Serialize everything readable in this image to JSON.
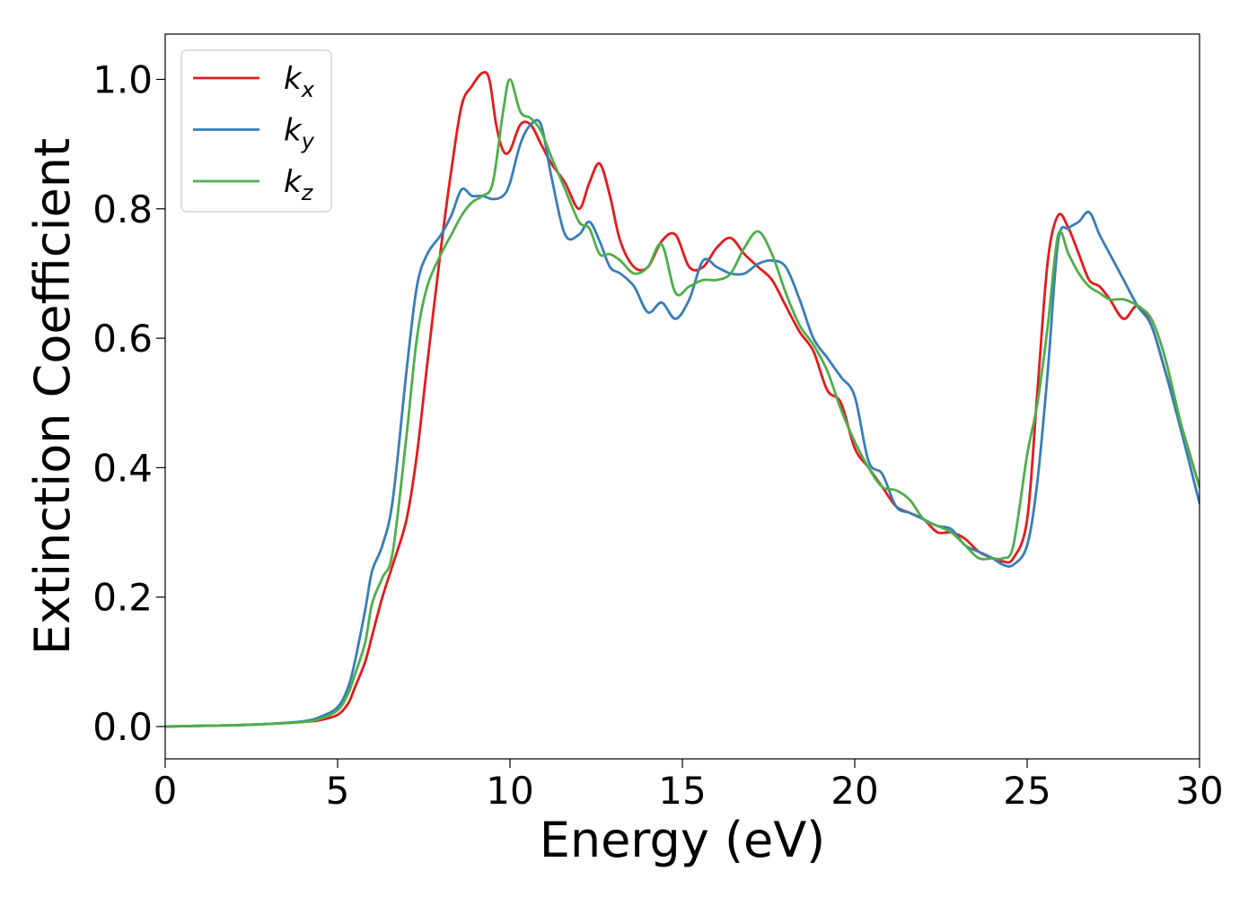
{
  "chart_data": {
    "type": "line",
    "xlabel": "Energy (eV)",
    "ylabel": "Extinction Coefficient",
    "xlim": [
      0,
      30
    ],
    "ylim": [
      -0.05,
      1.07
    ],
    "x_ticks": [
      "0",
      "5",
      "10",
      "15",
      "20",
      "25",
      "30"
    ],
    "y_ticks": [
      "0.0",
      "0.2",
      "0.4",
      "0.6",
      "0.8",
      "1.0"
    ],
    "grid": false,
    "legend_position": "top-left",
    "series": [
      {
        "name": "k",
        "subscript": "x",
        "color": "#e41a1c",
        "x": [
          0,
          1,
          2,
          3,
          4,
          4.5,
          5,
          5.3,
          5.5,
          5.8,
          6.0,
          6.3,
          6.6,
          7.0,
          7.3,
          7.6,
          8.0,
          8.3,
          8.6,
          8.9,
          9.2,
          9.4,
          9.6,
          9.8,
          10.0,
          10.3,
          10.6,
          10.9,
          11.2,
          11.6,
          12.0,
          12.3,
          12.6,
          12.9,
          13.2,
          13.6,
          14.0,
          14.4,
          14.8,
          15.2,
          15.6,
          16.0,
          16.4,
          16.8,
          17.2,
          17.6,
          18.0,
          18.4,
          18.8,
          19.2,
          19.6,
          20.0,
          20.4,
          20.8,
          21.2,
          21.6,
          22.0,
          22.4,
          22.8,
          23.2,
          23.6,
          24.0,
          24.3,
          24.6,
          25.0,
          25.3,
          25.6,
          25.9,
          26.2,
          26.5,
          26.8,
          27.1,
          27.4,
          27.8,
          28.2,
          28.6,
          29.0,
          29.5,
          30.0
        ],
        "values": [
          0.0,
          0.001,
          0.002,
          0.004,
          0.007,
          0.01,
          0.018,
          0.035,
          0.06,
          0.1,
          0.14,
          0.2,
          0.25,
          0.32,
          0.42,
          0.56,
          0.74,
          0.86,
          0.96,
          0.99,
          1.01,
          1.0,
          0.93,
          0.89,
          0.89,
          0.93,
          0.93,
          0.9,
          0.87,
          0.84,
          0.8,
          0.84,
          0.87,
          0.82,
          0.75,
          0.71,
          0.71,
          0.75,
          0.76,
          0.71,
          0.71,
          0.74,
          0.755,
          0.73,
          0.71,
          0.69,
          0.65,
          0.61,
          0.58,
          0.52,
          0.5,
          0.43,
          0.4,
          0.37,
          0.34,
          0.33,
          0.32,
          0.3,
          0.3,
          0.29,
          0.27,
          0.26,
          0.255,
          0.26,
          0.32,
          0.52,
          0.72,
          0.79,
          0.77,
          0.73,
          0.69,
          0.68,
          0.66,
          0.63,
          0.65,
          0.62,
          0.55,
          0.46,
          0.37
        ]
      },
      {
        "name": "k",
        "subscript": "y",
        "color": "#377eb8",
        "x": [
          0,
          1,
          2,
          3,
          4,
          4.5,
          5,
          5.3,
          5.5,
          5.8,
          6.0,
          6.3,
          6.6,
          7.0,
          7.3,
          7.6,
          8.0,
          8.3,
          8.6,
          8.9,
          9.2,
          9.5,
          9.8,
          10.0,
          10.3,
          10.6,
          10.9,
          11.2,
          11.6,
          12.0,
          12.3,
          12.6,
          12.9,
          13.2,
          13.6,
          14.0,
          14.4,
          14.8,
          15.2,
          15.6,
          16.0,
          16.4,
          16.8,
          17.2,
          17.6,
          18.0,
          18.4,
          18.8,
          19.2,
          19.6,
          20.0,
          20.4,
          20.8,
          21.2,
          21.6,
          22.0,
          22.4,
          22.8,
          23.2,
          23.6,
          24.0,
          24.3,
          24.6,
          25.0,
          25.3,
          25.6,
          25.9,
          26.2,
          26.5,
          26.8,
          27.1,
          27.4,
          27.8,
          28.2,
          28.6,
          29.0,
          29.5,
          30.0
        ],
        "values": [
          0.0,
          0.001,
          0.002,
          0.004,
          0.008,
          0.015,
          0.03,
          0.06,
          0.1,
          0.18,
          0.24,
          0.28,
          0.35,
          0.55,
          0.68,
          0.73,
          0.76,
          0.79,
          0.83,
          0.82,
          0.82,
          0.815,
          0.82,
          0.84,
          0.9,
          0.93,
          0.93,
          0.85,
          0.76,
          0.76,
          0.78,
          0.75,
          0.71,
          0.7,
          0.68,
          0.64,
          0.655,
          0.63,
          0.66,
          0.72,
          0.71,
          0.7,
          0.7,
          0.715,
          0.72,
          0.71,
          0.66,
          0.6,
          0.57,
          0.54,
          0.51,
          0.41,
          0.39,
          0.34,
          0.33,
          0.32,
          0.31,
          0.305,
          0.28,
          0.27,
          0.26,
          0.25,
          0.25,
          0.28,
          0.38,
          0.55,
          0.75,
          0.77,
          0.78,
          0.795,
          0.76,
          0.73,
          0.69,
          0.65,
          0.62,
          0.55,
          0.45,
          0.345
        ]
      },
      {
        "name": "k",
        "subscript": "z",
        "color": "#4daf4a",
        "x": [
          0,
          1,
          2,
          3,
          4,
          4.5,
          5,
          5.3,
          5.5,
          5.8,
          6.0,
          6.3,
          6.6,
          7.0,
          7.3,
          7.6,
          8.0,
          8.3,
          8.6,
          8.9,
          9.2,
          9.5,
          9.8,
          10.0,
          10.3,
          10.6,
          10.9,
          11.2,
          11.6,
          12.0,
          12.3,
          12.6,
          12.9,
          13.2,
          13.6,
          14.0,
          14.4,
          14.8,
          15.2,
          15.6,
          16.0,
          16.4,
          16.8,
          17.2,
          17.6,
          18.0,
          18.4,
          18.8,
          19.2,
          19.6,
          20.0,
          20.4,
          20.8,
          21.2,
          21.6,
          22.0,
          22.4,
          22.8,
          23.2,
          23.6,
          24.0,
          24.3,
          24.6,
          25.0,
          25.3,
          25.6,
          25.9,
          26.2,
          26.5,
          26.8,
          27.1,
          27.4,
          27.8,
          28.2,
          28.6,
          29.0,
          29.5,
          30.0
        ],
        "values": [
          0.0,
          0.001,
          0.002,
          0.004,
          0.007,
          0.012,
          0.025,
          0.05,
          0.08,
          0.13,
          0.19,
          0.23,
          0.27,
          0.45,
          0.6,
          0.68,
          0.73,
          0.76,
          0.79,
          0.81,
          0.82,
          0.84,
          0.95,
          1.0,
          0.95,
          0.94,
          0.92,
          0.88,
          0.83,
          0.78,
          0.77,
          0.73,
          0.73,
          0.72,
          0.7,
          0.71,
          0.745,
          0.67,
          0.68,
          0.69,
          0.69,
          0.7,
          0.74,
          0.765,
          0.73,
          0.67,
          0.62,
          0.59,
          0.55,
          0.49,
          0.44,
          0.4,
          0.37,
          0.365,
          0.35,
          0.32,
          0.31,
          0.3,
          0.28,
          0.26,
          0.26,
          0.26,
          0.28,
          0.42,
          0.5,
          0.62,
          0.76,
          0.73,
          0.7,
          0.68,
          0.67,
          0.66,
          0.66,
          0.65,
          0.63,
          0.57,
          0.46,
          0.37
        ]
      }
    ]
  }
}
